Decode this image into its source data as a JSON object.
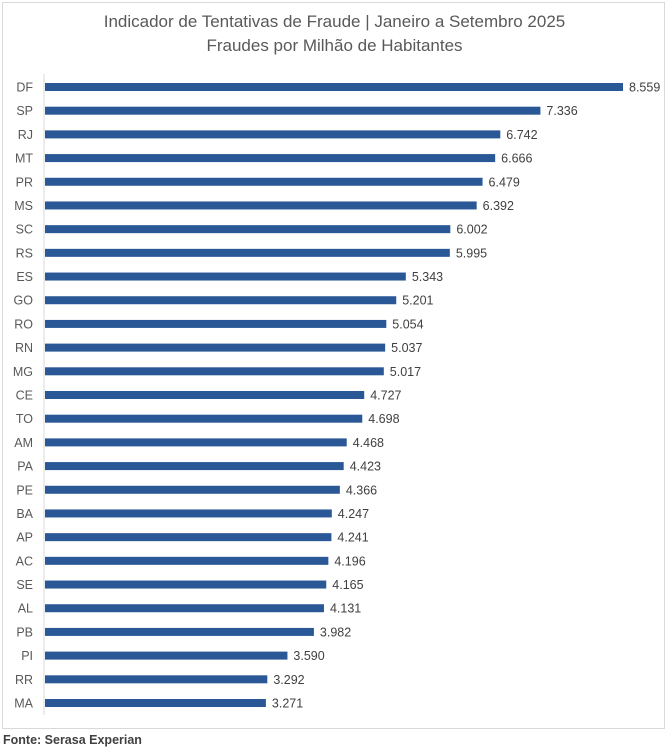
{
  "chart_data": {
    "type": "bar",
    "orientation": "horizontal",
    "title": "Indicador de Tentativas de Fraude | Janeiro a Setembro 2025",
    "subtitle": "Fraudes por Milhão de Habitantes",
    "categories": [
      "DF",
      "SP",
      "RJ",
      "MT",
      "PR",
      "MS",
      "SC",
      "RS",
      "ES",
      "GO",
      "RO",
      "RN",
      "MG",
      "CE",
      "TO",
      "AM",
      "PA",
      "PE",
      "BA",
      "AP",
      "AC",
      "SE",
      "AL",
      "PB",
      "PI",
      "RR",
      "MA"
    ],
    "values": [
      8.559,
      7.336,
      6.742,
      6.666,
      6.479,
      6.392,
      6.002,
      5.995,
      5.343,
      5.201,
      5.054,
      5.037,
      5.017,
      4.727,
      4.698,
      4.468,
      4.423,
      4.366,
      4.247,
      4.241,
      4.196,
      4.165,
      4.131,
      3.982,
      3.59,
      3.292,
      3.271
    ],
    "data_labels": [
      "8.559",
      "7.336",
      "6.742",
      "6.666",
      "6.479",
      "6.392",
      "6.002",
      "5.995",
      "5.343",
      "5.201",
      "5.054",
      "5.037",
      "5.017",
      "4.727",
      "4.698",
      "4.468",
      "4.423",
      "4.366",
      "4.247",
      "4.241",
      "4.196",
      "4.165",
      "4.131",
      "3.982",
      "3.590",
      "3.292",
      "3.271"
    ],
    "xlim": [
      0,
      9
    ],
    "grid": false,
    "bar_color": "#2a5896",
    "source": "Fonte: Serasa Experian"
  }
}
